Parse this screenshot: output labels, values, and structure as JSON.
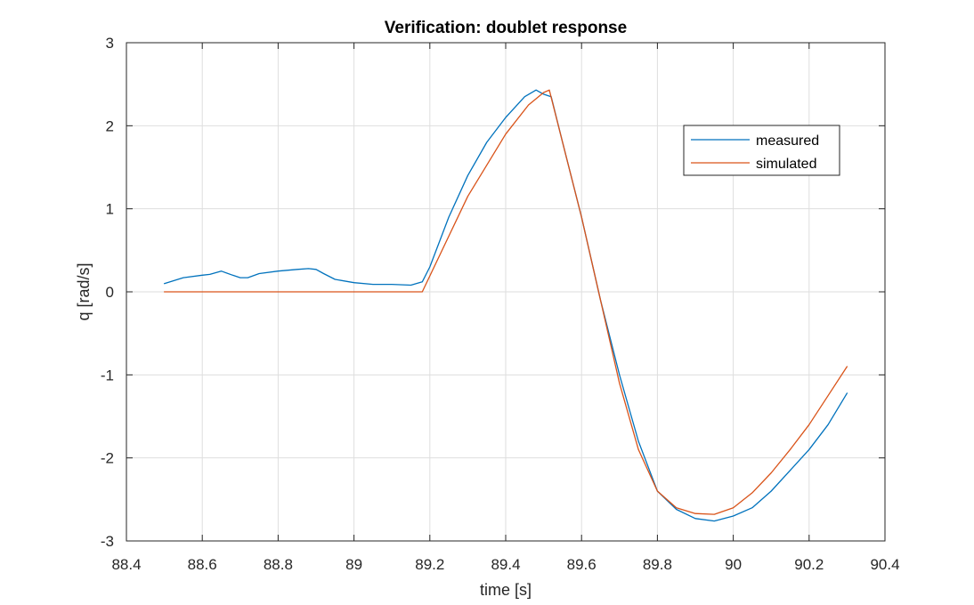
{
  "chart_data": {
    "type": "line",
    "title": "Verification: doublet response",
    "xlabel": "time [s]",
    "ylabel": "q [rad/s]",
    "xlim": [
      88.4,
      90.4
    ],
    "ylim": [
      -3,
      3
    ],
    "xticks": [
      "88.4",
      "88.6",
      "88.8",
      "89",
      "89.2",
      "89.4",
      "89.6",
      "89.8",
      "90",
      "90.2",
      "90.4"
    ],
    "yticks": [
      "3",
      "2",
      "1",
      "0",
      "-1",
      "-2",
      "-3"
    ],
    "grid": true,
    "legend_position": "top-right",
    "series": [
      {
        "name": "measured",
        "color": "#0072bd",
        "x": [
          88.5,
          88.55,
          88.6,
          88.62,
          88.65,
          88.68,
          88.7,
          88.72,
          88.75,
          88.8,
          88.85,
          88.88,
          88.9,
          88.92,
          88.95,
          89.0,
          89.05,
          89.1,
          89.15,
          89.18,
          89.2,
          89.25,
          89.3,
          89.35,
          89.4,
          89.45,
          89.48,
          89.5,
          89.52,
          89.55,
          89.6,
          89.65,
          89.7,
          89.75,
          89.8,
          89.85,
          89.9,
          89.95,
          90.0,
          90.05,
          90.1,
          90.15,
          90.2,
          90.25,
          90.3
        ],
        "y": [
          0.1,
          0.17,
          0.2,
          0.21,
          0.25,
          0.2,
          0.17,
          0.17,
          0.22,
          0.25,
          0.27,
          0.28,
          0.27,
          0.22,
          0.15,
          0.11,
          0.09,
          0.09,
          0.08,
          0.12,
          0.3,
          0.9,
          1.4,
          1.8,
          2.1,
          2.35,
          2.43,
          2.38,
          2.35,
          1.8,
          0.9,
          -0.1,
          -1.0,
          -1.8,
          -2.4,
          -2.62,
          -2.73,
          -2.76,
          -2.7,
          -2.6,
          -2.4,
          -2.15,
          -1.9,
          -1.6,
          -1.22
        ]
      },
      {
        "name": "simulated",
        "color": "#d95319",
        "x": [
          88.5,
          89.18,
          89.3,
          89.4,
          89.46,
          89.5,
          89.515,
          89.55,
          89.6,
          89.65,
          89.7,
          89.75,
          89.8,
          89.85,
          89.9,
          89.95,
          90.0,
          90.05,
          90.1,
          90.15,
          90.2,
          90.25,
          90.3
        ],
        "y": [
          0.0,
          0.0,
          1.15,
          1.9,
          2.25,
          2.4,
          2.43,
          1.8,
          0.9,
          -0.1,
          -1.1,
          -1.9,
          -2.4,
          -2.6,
          -2.67,
          -2.68,
          -2.6,
          -2.42,
          -2.18,
          -1.9,
          -1.6,
          -1.25,
          -0.9
        ]
      }
    ]
  }
}
